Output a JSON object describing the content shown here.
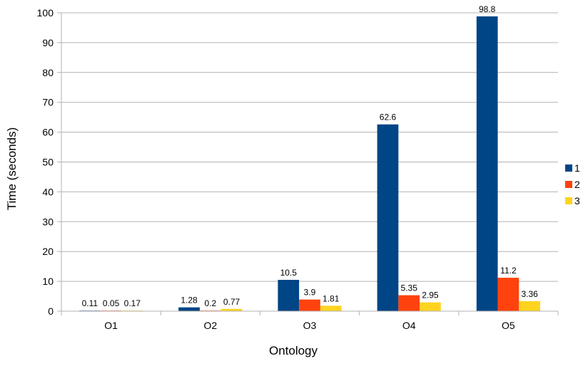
{
  "chart_data": {
    "type": "bar",
    "categories": [
      "O1",
      "O2",
      "O3",
      "O4",
      "O5"
    ],
    "series": [
      {
        "name": "1",
        "values": [
          0.11,
          1.28,
          10.5,
          62.6,
          98.8
        ],
        "labels": [
          "0.11",
          "1.28",
          "10.5",
          "62.6",
          "98.8"
        ],
        "color": "#004586"
      },
      {
        "name": "2",
        "values": [
          0.05,
          0.2,
          3.9,
          5.35,
          11.2
        ],
        "labels": [
          "0.05",
          "0.2",
          "3.9",
          "5.35",
          "11.2"
        ],
        "color": "#FF420E"
      },
      {
        "name": "3",
        "values": [
          0.17,
          0.77,
          1.81,
          2.95,
          3.36
        ],
        "labels": [
          "0.17",
          "0.77",
          "1.81",
          "2.95",
          "3.36"
        ],
        "color": "#FFD320"
      }
    ],
    "xlabel": "Ontology",
    "ylabel": "Time (seconds)",
    "ylim": [
      0,
      100
    ],
    "yticks": [
      "0",
      "10",
      "20",
      "30",
      "40",
      "50",
      "60",
      "70",
      "80",
      "90",
      "100"
    ],
    "grid": true,
    "legend": "right"
  }
}
